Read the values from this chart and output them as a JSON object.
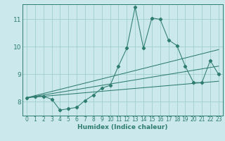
{
  "xlabel": "Humidex (Indice chaleur)",
  "background_color": "#cbe8ed",
  "grid_color": "#9fcfca",
  "line_color": "#2e7d6e",
  "xlim": [
    -0.5,
    23.5
  ],
  "ylim": [
    7.5,
    11.55
  ],
  "xticks": [
    0,
    1,
    2,
    3,
    4,
    5,
    6,
    7,
    8,
    9,
    10,
    11,
    12,
    13,
    14,
    15,
    16,
    17,
    18,
    19,
    20,
    21,
    22,
    23
  ],
  "yticks": [
    8,
    9,
    10,
    11
  ],
  "series1_x": [
    0,
    1,
    2,
    3,
    4,
    5,
    6,
    7,
    8,
    9,
    10,
    11,
    12,
    13,
    14,
    15,
    16,
    17,
    18,
    19,
    20,
    21,
    22,
    23
  ],
  "series1_y": [
    8.15,
    8.2,
    8.2,
    8.1,
    7.7,
    7.75,
    7.8,
    8.05,
    8.25,
    8.5,
    8.6,
    9.3,
    9.95,
    11.45,
    9.95,
    11.05,
    11.0,
    10.25,
    10.05,
    9.3,
    8.7,
    8.7,
    9.5,
    9.0
  ],
  "series2_x": [
    0,
    23
  ],
  "series2_y": [
    8.15,
    9.9
  ],
  "series3_x": [
    0,
    23
  ],
  "series3_y": [
    8.15,
    8.75
  ],
  "series4_x": [
    0,
    23
  ],
  "series4_y": [
    8.15,
    9.3
  ]
}
